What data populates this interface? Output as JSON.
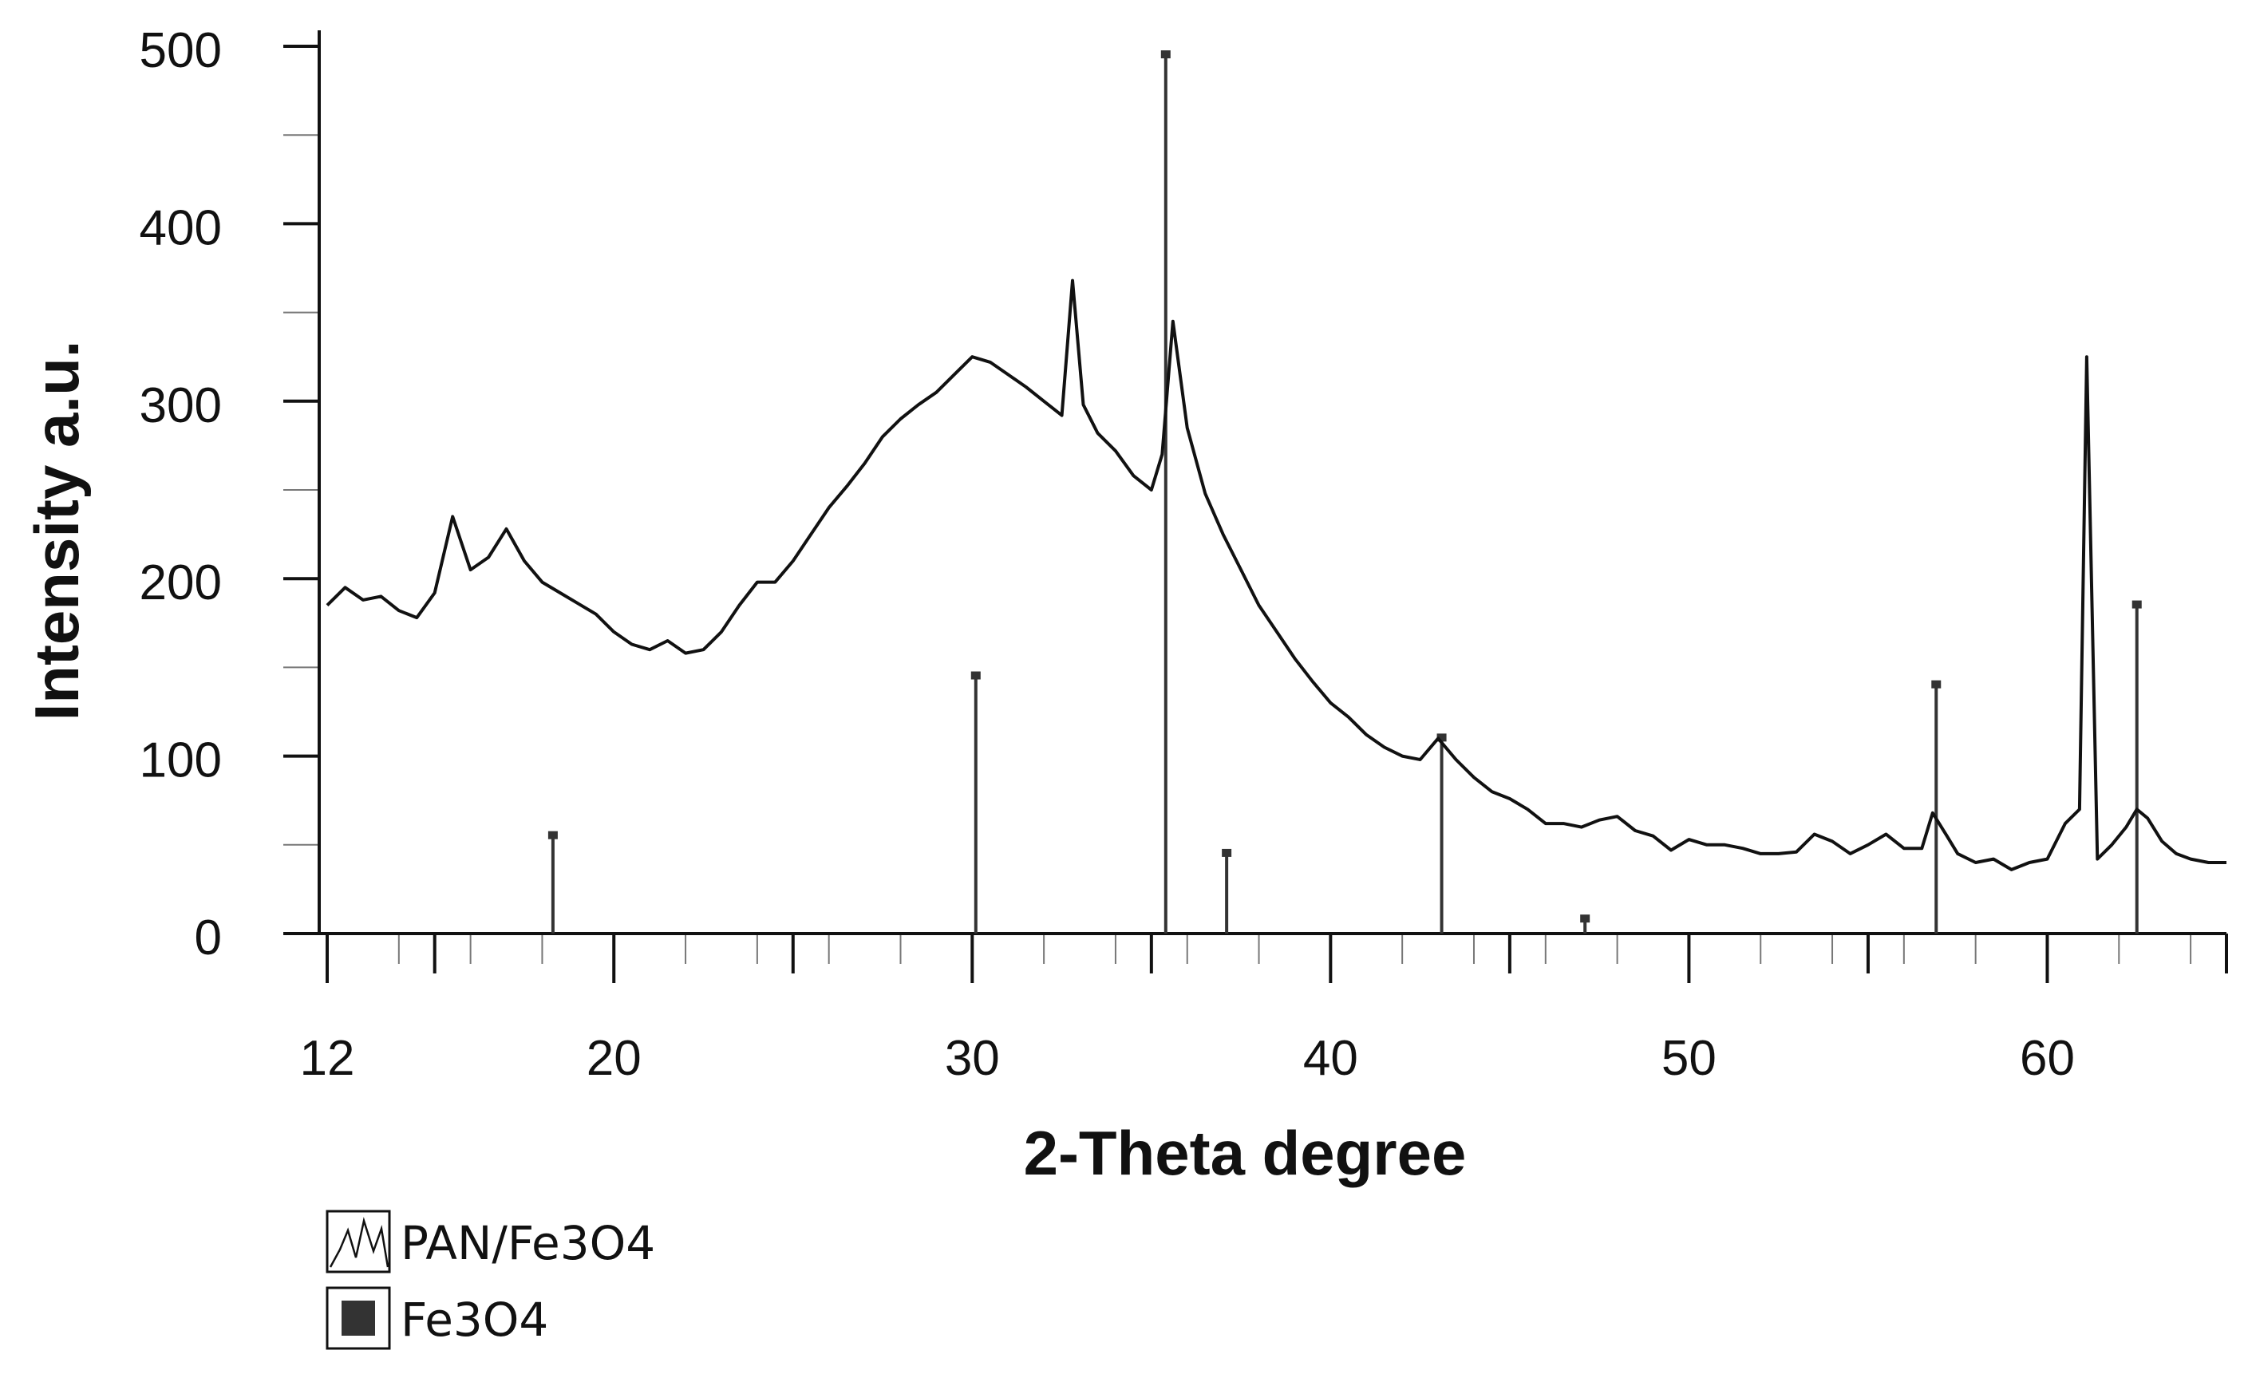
{
  "chart_data": {
    "type": "line",
    "xlabel": "2-Theta degree",
    "ylabel": "Intensity a.u.",
    "xlim": [
      12,
      65
    ],
    "ylim": [
      0,
      500
    ],
    "x_ticks": [
      12,
      20,
      30,
      40,
      50,
      60
    ],
    "y_ticks": [
      0,
      100,
      200,
      300,
      400,
      500
    ],
    "legend_position": "bottom-left",
    "grid": false,
    "series": [
      {
        "name": "PAN/Fe3O4",
        "kind": "line",
        "color": "#111111",
        "points": [
          [
            12,
            185
          ],
          [
            12.5,
            195
          ],
          [
            13,
            188
          ],
          [
            13.5,
            190
          ],
          [
            14,
            182
          ],
          [
            14.5,
            178
          ],
          [
            15,
            192
          ],
          [
            15.5,
            235
          ],
          [
            16,
            205
          ],
          [
            16.5,
            212
          ],
          [
            17,
            228
          ],
          [
            17.5,
            210
          ],
          [
            18,
            198
          ],
          [
            18.5,
            192
          ],
          [
            19,
            186
          ],
          [
            19.5,
            180
          ],
          [
            20,
            170
          ],
          [
            20.5,
            163
          ],
          [
            21,
            160
          ],
          [
            21.5,
            165
          ],
          [
            22,
            158
          ],
          [
            22.5,
            160
          ],
          [
            23,
            170
          ],
          [
            23.5,
            185
          ],
          [
            24,
            198
          ],
          [
            24.5,
            198
          ],
          [
            25,
            210
          ],
          [
            25.5,
            225
          ],
          [
            26,
            240
          ],
          [
            26.5,
            252
          ],
          [
            27,
            265
          ],
          [
            27.5,
            280
          ],
          [
            28,
            290
          ],
          [
            28.5,
            298
          ],
          [
            29,
            305
          ],
          [
            29.5,
            315
          ],
          [
            30,
            325
          ],
          [
            30.5,
            322
          ],
          [
            31,
            315
          ],
          [
            31.5,
            308
          ],
          [
            32,
            300
          ],
          [
            32.5,
            292
          ],
          [
            32.8,
            368
          ],
          [
            33.1,
            298
          ],
          [
            33.5,
            282
          ],
          [
            34,
            272
          ],
          [
            34.5,
            258
          ],
          [
            35,
            250
          ],
          [
            35.3,
            270
          ],
          [
            35.6,
            345
          ],
          [
            36,
            285
          ],
          [
            36.5,
            248
          ],
          [
            37,
            225
          ],
          [
            37.5,
            205
          ],
          [
            38,
            185
          ],
          [
            38.5,
            170
          ],
          [
            39,
            155
          ],
          [
            39.5,
            142
          ],
          [
            40,
            130
          ],
          [
            40.5,
            122
          ],
          [
            41,
            112
          ],
          [
            41.5,
            105
          ],
          [
            42,
            100
          ],
          [
            42.5,
            98
          ],
          [
            43,
            110
          ],
          [
            43.5,
            98
          ],
          [
            44,
            88
          ],
          [
            44.5,
            80
          ],
          [
            45,
            76
          ],
          [
            45.5,
            70
          ],
          [
            46,
            62
          ],
          [
            46.5,
            62
          ],
          [
            47,
            60
          ],
          [
            47.5,
            64
          ],
          [
            48,
            66
          ],
          [
            48.5,
            58
          ],
          [
            49,
            55
          ],
          [
            49.5,
            47
          ],
          [
            50,
            53
          ],
          [
            50.5,
            50
          ],
          [
            51,
            50
          ],
          [
            51.5,
            48
          ],
          [
            52,
            45
          ],
          [
            52.5,
            45
          ],
          [
            53,
            46
          ],
          [
            53.5,
            56
          ],
          [
            54,
            52
          ],
          [
            54.5,
            45
          ],
          [
            55,
            50
          ],
          [
            55.5,
            56
          ],
          [
            56,
            48
          ],
          [
            56.5,
            48
          ],
          [
            56.8,
            68
          ],
          [
            57.2,
            55
          ],
          [
            57.5,
            45
          ],
          [
            58,
            40
          ],
          [
            58.5,
            42
          ],
          [
            59,
            36
          ],
          [
            59.5,
            40
          ],
          [
            60,
            42
          ],
          [
            60.5,
            62
          ],
          [
            60.9,
            70
          ],
          [
            61.1,
            325
          ],
          [
            61.4,
            42
          ],
          [
            61.8,
            50
          ],
          [
            62.2,
            60
          ],
          [
            62.5,
            70
          ],
          [
            62.8,
            65
          ],
          [
            63.2,
            52
          ],
          [
            63.6,
            45
          ],
          [
            64,
            42
          ],
          [
            64.5,
            40
          ],
          [
            65,
            40
          ]
        ]
      },
      {
        "name": "Fe3O4",
        "kind": "sticks",
        "color": "#333333",
        "points": [
          [
            18.3,
            55
          ],
          [
            30.1,
            145
          ],
          [
            35.4,
            495
          ],
          [
            37.1,
            45
          ],
          [
            43.1,
            110
          ],
          [
            47.1,
            8
          ],
          [
            56.9,
            140
          ],
          [
            62.5,
            185
          ]
        ]
      }
    ]
  }
}
